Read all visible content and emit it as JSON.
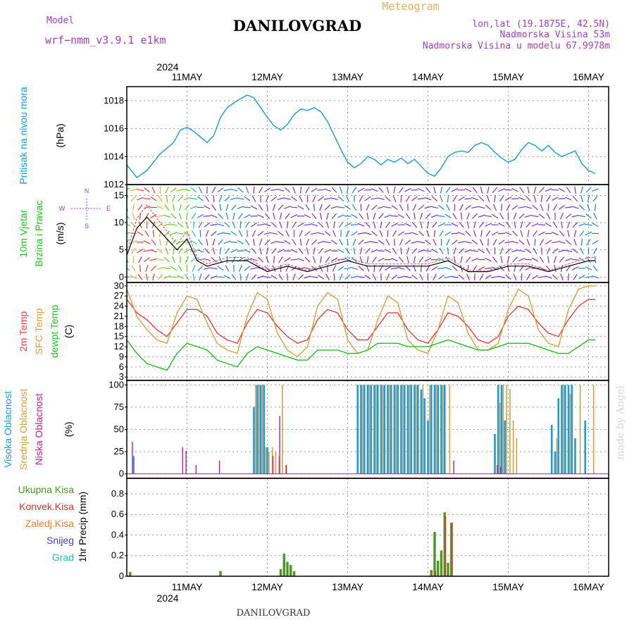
{
  "header": {
    "model_label": "Model",
    "model_name": "wrf−nmm_v3.9.1 e1km",
    "station": "DANILOVGRAD",
    "product": "Meteogram",
    "lonlat": "lon,lat (19.1875E, 42.5N)",
    "elevation": "Nadmorska Visina 53m",
    "model_elevation": "Nadmorska Visina u modelu 67.9978m"
  },
  "footer": {
    "station": "DANILOVGRAD",
    "credit": "made by Angel"
  },
  "colors": {
    "pressure": "#1a9ae0",
    "temp2m": "#e84040",
    "sfc_temp": "#d8a040",
    "dewpoint": "#20c020",
    "high_cloud": "#1a9ae0",
    "mid_cloud": "#d8a040",
    "low_cloud": "#c02090",
    "total_precip": "#4a9a20",
    "conv_precip": "#e03030",
    "stratiform_precip": "#f08030",
    "snow": "#4040e0",
    "hail": "#20c0c0"
  },
  "chart_data": {
    "type": "line",
    "time_axis": {
      "year": "2024",
      "days": [
        "11MAY",
        "12MAY",
        "13MAY",
        "14MAY",
        "15MAY",
        "16MAY"
      ],
      "start_hour_before_first_day": 6,
      "hours_span": 140
    },
    "panels": [
      {
        "id": "pressure",
        "type": "line",
        "ylabels": [
          "Pritisak na nivou mora",
          "(hPa)"
        ],
        "ylim": [
          1012,
          1019
        ],
        "yticks": [
          1012,
          1014,
          1016,
          1018
        ],
        "grid": true,
        "series": [
          {
            "hours_x": [
              0,
              3,
              6,
              10,
              14,
              16,
              18,
              20,
              24,
              26,
              28,
              30,
              33,
              36,
              38,
              40,
              42,
              44,
              46,
              48,
              50,
              52,
              54,
              56,
              58,
              60,
              62,
              64,
              66,
              68,
              70,
              72,
              74,
              76,
              78,
              80,
              82,
              84,
              86,
              88,
              90,
              92,
              94,
              96,
              98,
              100,
              102,
              104,
              106,
              108,
              110,
              112,
              114,
              116,
              118,
              120,
              122,
              124,
              126,
              128,
              130,
              132,
              134,
              136,
              138,
              140
            ],
            "values": [
              1013.4,
              1012.5,
              1013.0,
              1014.2,
              1015.0,
              1015.9,
              1016.1,
              1015.8,
              1015.0,
              1015.5,
              1016.8,
              1017.5,
              1018.0,
              1018.4,
              1018.2,
              1017.5,
              1016.8,
              1016.2,
              1015.9,
              1016.3,
              1017.0,
              1017.4,
              1017.3,
              1017.5,
              1017.2,
              1016.5,
              1015.5,
              1014.5,
              1013.6,
              1013.2,
              1013.5,
              1014.0,
              1013.8,
              1013.4,
              1013.8,
              1013.6,
              1013.9,
              1013.5,
              1013.8,
              1013.3,
              1012.8,
              1012.6,
              1013.2,
              1014.0,
              1014.3,
              1014.4,
              1014.3,
              1014.8,
              1015.0,
              1014.8,
              1014.3,
              1013.9,
              1013.6,
              1013.8,
              1014.5,
              1015.0,
              1014.8,
              1014.4,
              1014.8,
              1014.3,
              1014.0,
              1014.2,
              1014.4,
              1013.5,
              1013.0,
              1012.8
            ]
          }
        ]
      },
      {
        "id": "wind",
        "type": "barbs",
        "ylabels": [
          "10m Vjetar",
          "Brzina i Pravac",
          "(m/s)"
        ],
        "ylim": [
          -1,
          17
        ],
        "yticks": [
          0,
          5,
          10,
          15
        ],
        "legend_letters": [
          "N",
          "S",
          "W",
          "E"
        ],
        "grid": true,
        "series": [
          {
            "name": "speed",
            "hours_x": [
              0,
              3,
              6,
              9,
              12,
              15,
              18,
              21,
              24,
              30,
              36,
              42,
              48,
              54,
              60,
              66,
              72,
              78,
              84,
              90,
              96,
              102,
              108,
              114,
              120,
              126,
              132,
              138,
              140
            ],
            "values": [
              4,
              9,
              11,
              9,
              7,
              5,
              7,
              3,
              2,
              3,
              3,
              1,
              2,
              1,
              2,
              3,
              2,
              2,
              2,
              2,
              3,
              1,
              1,
              2,
              2,
              1,
              2,
              3,
              3
            ]
          }
        ]
      },
      {
        "id": "temperature",
        "type": "line",
        "ylabels": [
          "2m Temp",
          "SFC Temp",
          "dewpt Temp",
          "(C)"
        ],
        "ylim": [
          2,
          31
        ],
        "yticks": [
          3,
          6,
          9,
          12,
          15,
          18,
          21,
          24,
          27,
          30
        ],
        "grid": true,
        "series": [
          {
            "id": "t2m",
            "hours_x": [
              0,
              3,
              6,
              9,
              12,
              15,
              18,
              21,
              24,
              27,
              30,
              33,
              36,
              39,
              42,
              45,
              48,
              51,
              54,
              57,
              60,
              63,
              66,
              69,
              72,
              75,
              78,
              81,
              84,
              87,
              90,
              93,
              96,
              99,
              102,
              105,
              108,
              111,
              114,
              117,
              120,
              123,
              126,
              129,
              132,
              135,
              138,
              140
            ],
            "values": [
              26,
              22,
              20,
              17,
              15,
              19,
              23,
              23,
              21,
              16,
              14,
              13,
              19,
              23,
              22,
              18,
              15,
              13,
              14,
              20,
              23,
              22,
              17,
              14,
              14,
              18,
              22,
              22,
              17,
              14,
              13,
              17,
              22,
              21,
              18,
              14,
              13,
              15,
              21,
              24,
              23,
              19,
              16,
              15,
              20,
              24,
              26,
              26
            ]
          },
          {
            "id": "sfc",
            "hours_x": [
              0,
              3,
              6,
              9,
              12,
              15,
              18,
              21,
              24,
              27,
              30,
              33,
              36,
              39,
              42,
              45,
              48,
              51,
              54,
              57,
              60,
              63,
              66,
              69,
              72,
              75,
              78,
              81,
              84,
              87,
              90,
              93,
              96,
              99,
              102,
              105,
              108,
              111,
              114,
              117,
              120,
              123,
              126,
              129,
              132,
              135,
              138,
              140
            ],
            "values": [
              29,
              21,
              17,
              14,
              13,
              22,
              27,
              26,
              19,
              13,
              11,
              10,
              21,
              28,
              26,
              16,
              11,
              9,
              12,
              24,
              28,
              26,
              14,
              10,
              11,
              20,
              27,
              25,
              14,
              11,
              10,
              17,
              27,
              25,
              16,
              11,
              11,
              13,
              23,
              29,
              27,
              17,
              13,
              12,
              23,
              29,
              30,
              30
            ]
          },
          {
            "id": "dewpt",
            "hours_x": [
              0,
              3,
              6,
              9,
              12,
              15,
              18,
              21,
              24,
              27,
              30,
              33,
              36,
              39,
              42,
              45,
              48,
              51,
              54,
              57,
              60,
              63,
              66,
              69,
              72,
              75,
              78,
              81,
              84,
              87,
              90,
              93,
              96,
              99,
              102,
              105,
              108,
              111,
              114,
              117,
              120,
              123,
              126,
              129,
              132,
              135,
              138,
              140
            ],
            "values": [
              14,
              10,
              7,
              6,
              5,
              10,
              13,
              12,
              11,
              8,
              7,
              6,
              10,
              12,
              11,
              10,
              9,
              8,
              8,
              11,
              11,
              11,
              10,
              10,
              11,
              13,
              13,
              13,
              12,
              12,
              12,
              13,
              14,
              13,
              12,
              11,
              11,
              12,
              13,
              13,
              13,
              12,
              11,
              10,
              10,
              12,
              14,
              14
            ]
          }
        ]
      },
      {
        "id": "cloud",
        "type": "bar",
        "ylabels": [
          "Visoka Oblacnost",
          "Srednja Oblacnost",
          "Niska Oblacnost",
          "(%)"
        ],
        "ylim": [
          -5,
          105
        ],
        "yticks": [
          0,
          25,
          50,
          75,
          100
        ],
        "grid": true,
        "series": [
          {
            "id": "high",
            "hours_x": [
              2,
              38,
              39,
              40,
              41,
              42,
              69,
              70,
              71,
              72,
              73,
              74,
              75,
              76,
              77,
              78,
              79,
              80,
              81,
              82,
              83,
              84,
              85,
              86,
              87,
              88,
              89,
              90,
              91,
              92,
              93,
              94,
              95,
              110,
              111,
              112,
              113,
              127,
              128,
              129,
              130,
              131,
              132,
              133,
              134,
              137
            ],
            "values": [
              20,
              75,
              100,
              100,
              100,
              30,
              100,
              100,
              100,
              100,
              100,
              100,
              100,
              100,
              100,
              100,
              100,
              100,
              100,
              100,
              100,
              100,
              100,
              100,
              100,
              95,
              85,
              60,
              100,
              100,
              100,
              100,
              100,
              45,
              100,
              100,
              60,
              55,
              25,
              85,
              100,
              100,
              100,
              100,
              40,
              60
            ]
          },
          {
            "id": "mid",
            "hours_x": [
              38,
              39,
              40,
              41,
              42,
              43,
              44,
              45,
              46,
              47,
              70,
              72,
              74,
              76,
              78,
              80,
              82,
              84,
              86,
              88,
              90,
              92,
              94,
              96,
              111,
              112,
              113,
              114,
              115,
              116,
              128,
              130,
              132,
              135,
              139
            ],
            "values": [
              100,
              100,
              100,
              30,
              25,
              30,
              25,
              20,
              100,
              10,
              100,
              100,
              100,
              100,
              100,
              100,
              100,
              100,
              100,
              100,
              100,
              100,
              100,
              100,
              80,
              100,
              100,
              95,
              60,
              40,
              40,
              100,
              90,
              100,
              100
            ]
          },
          {
            "id": "low",
            "hours_x": [
              2,
              17,
              18,
              21,
              28,
              44,
              46,
              48,
              98,
              111,
              112
            ],
            "values": [
              36,
              30,
              26,
              10,
              15,
              20,
              65,
              10,
              15,
              10,
              8
            ]
          }
        ]
      },
      {
        "id": "precip",
        "type": "bar",
        "ylabels": [
          "Ukupna Kisa",
          "Konvek.Kisa",
          "Zaledj.Kisa",
          "Snijeg",
          "Grad",
          "1hr Precip (mm)"
        ],
        "ylim": [
          0,
          0.95
        ],
        "yticks": [
          0,
          0.2,
          0.4,
          0.6,
          0.8
        ],
        "grid": true,
        "series": [
          {
            "id": "total",
            "hours_x": [
              1,
              28,
              46,
              47,
              48,
              49,
              50,
              91,
              92,
              93,
              94,
              95,
              96,
              97
            ],
            "values": [
              0.04,
              0.05,
              0.07,
              0.22,
              0.14,
              0.11,
              0.05,
              0.06,
              0.43,
              0.15,
              0.25,
              0.62,
              0.13,
              0.52
            ]
          },
          {
            "id": "convective",
            "hours_x": [
              92,
              95,
              97
            ],
            "values": [
              0.05,
              0.58,
              0.52
            ]
          }
        ]
      }
    ]
  }
}
